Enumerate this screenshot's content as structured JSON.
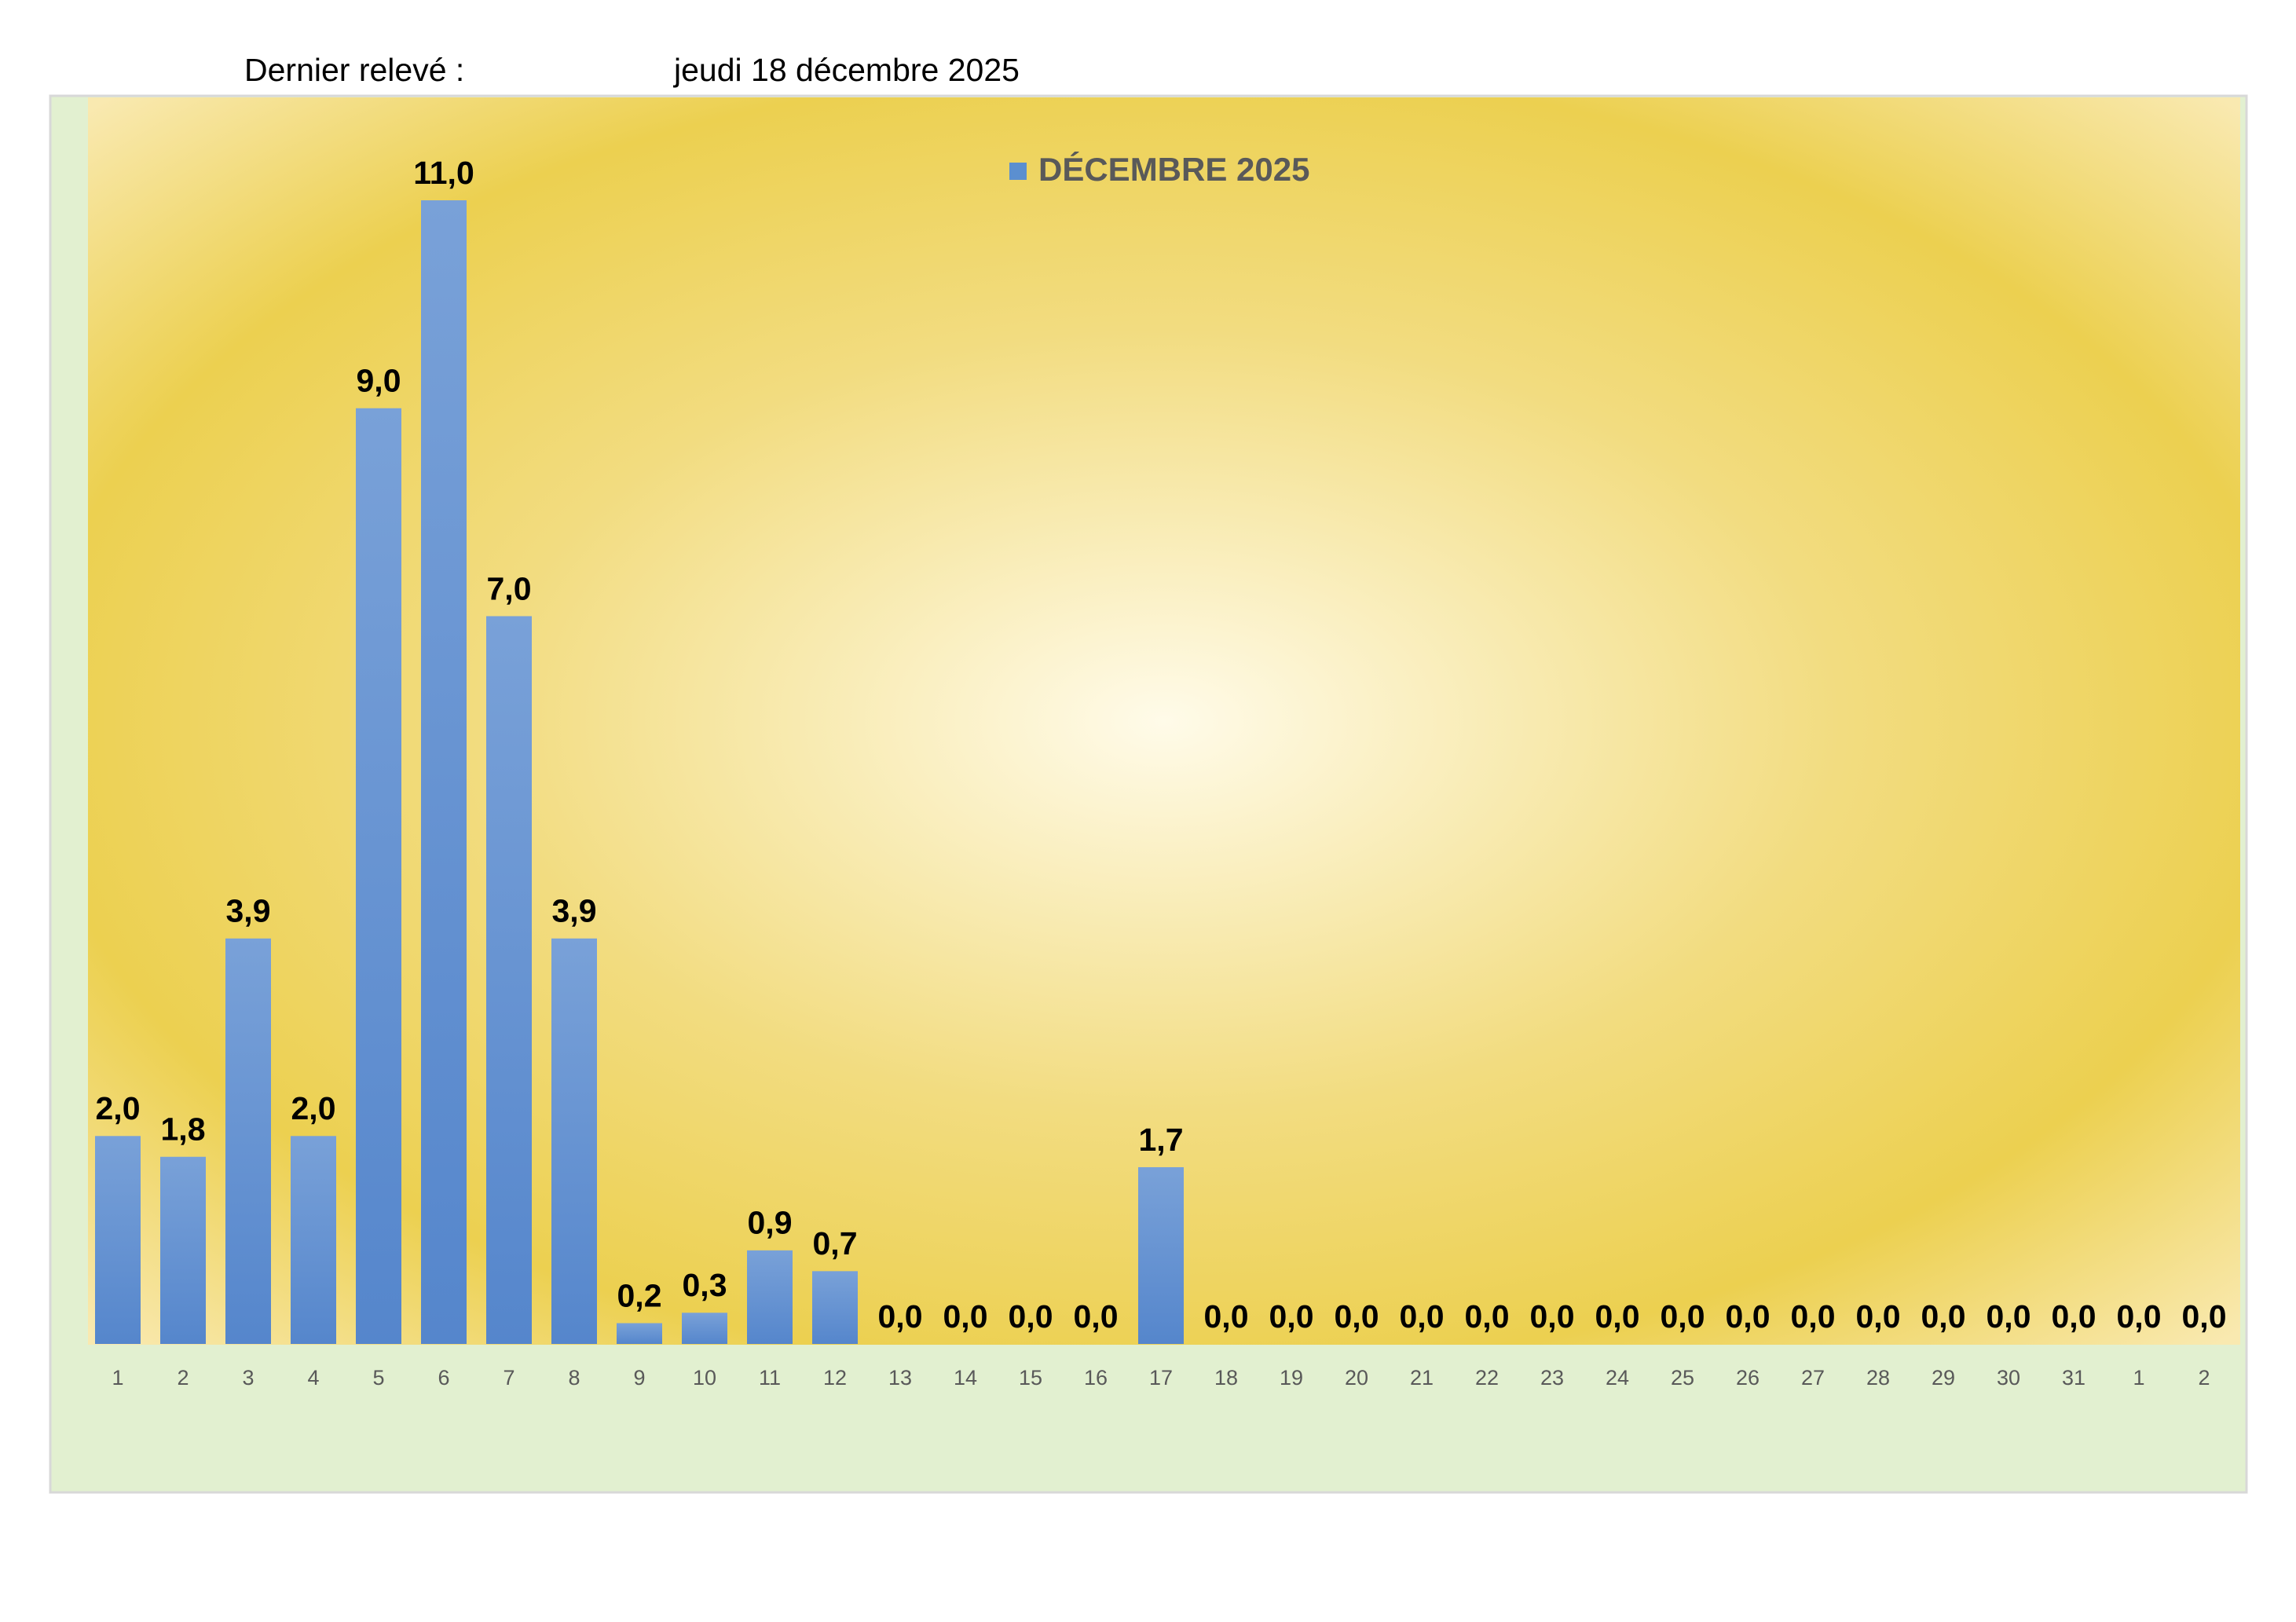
{
  "header": {
    "label": "Dernier relevé :",
    "date": "jeudi 18 décembre 2025"
  },
  "chart_data": {
    "type": "bar",
    "categories": [
      "1",
      "2",
      "3",
      "4",
      "5",
      "6",
      "7",
      "8",
      "9",
      "10",
      "11",
      "12",
      "13",
      "14",
      "15",
      "16",
      "17",
      "18",
      "19",
      "20",
      "21",
      "22",
      "23",
      "24",
      "25",
      "26",
      "27",
      "28",
      "29",
      "30",
      "31",
      "1",
      "2"
    ],
    "series": [
      {
        "name": "DÉCEMBRE 2025",
        "color": "#5b8fd0",
        "values": [
          2.0,
          1.8,
          3.9,
          2.0,
          9.0,
          11.0,
          7.0,
          3.9,
          0.2,
          0.3,
          0.9,
          0.7,
          0,
          0,
          0,
          0,
          1.7,
          0,
          0,
          0,
          0,
          0,
          0,
          0,
          0,
          0,
          0,
          0,
          0,
          0,
          0,
          0,
          0
        ],
        "value_labels": [
          "2,0",
          "1,8",
          "3,9",
          "2,0",
          "9,0",
          "11,0",
          "7,0",
          "3,9",
          "0,2",
          "0,3",
          "0,9",
          "0,7",
          "0,0",
          "0,0",
          "0,0",
          "0,0",
          "1,7",
          "0,0",
          "0,0",
          "0,0",
          "0,0",
          "0,0",
          "0,0",
          "0,0",
          "0,0",
          "0,0",
          "0,0",
          "0,0",
          "0,0",
          "0,0",
          "0,0",
          "0,0",
          "0,0"
        ]
      }
    ],
    "legend": "top"
  }
}
